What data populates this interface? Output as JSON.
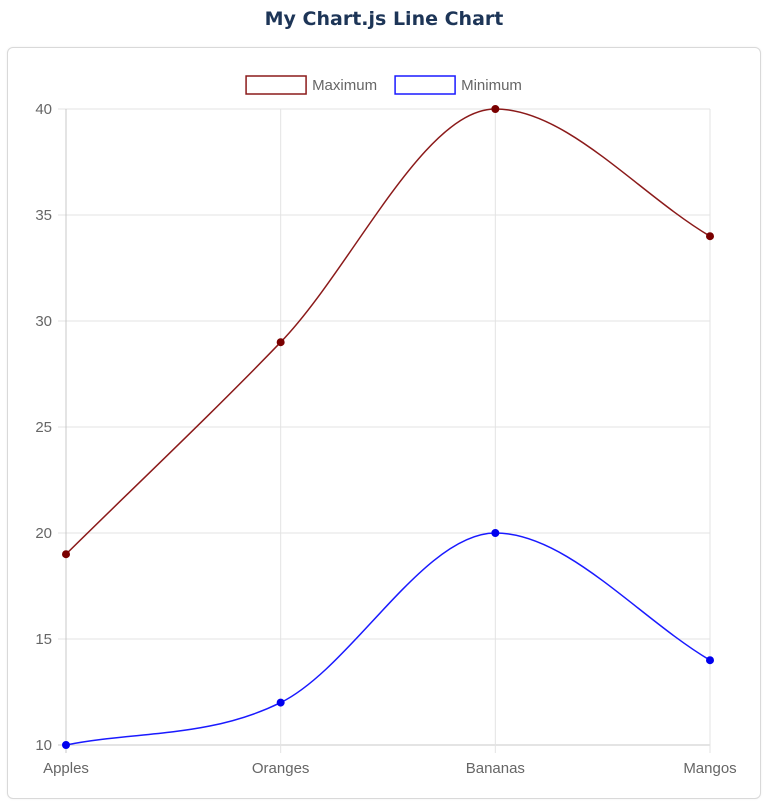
{
  "page": {
    "title": "My Chart.js Line Chart"
  },
  "chart_data": {
    "type": "line",
    "categories": [
      "Apples",
      "Oranges",
      "Bananas",
      "Mangos"
    ],
    "series": [
      {
        "name": "Maximum",
        "values": [
          19,
          29,
          40,
          34
        ],
        "color": "#8b1a1a",
        "point_color": "#7a0000"
      },
      {
        "name": "Minimum",
        "values": [
          10,
          12,
          20,
          14
        ],
        "color": "#1a1aff",
        "point_color": "#0000ee"
      }
    ],
    "ylim": [
      10,
      40
    ],
    "y_ticks": [
      10,
      15,
      20,
      25,
      30,
      35,
      40
    ],
    "grid": true,
    "legend_position": "top",
    "title": "",
    "xlabel": "",
    "ylabel": ""
  }
}
